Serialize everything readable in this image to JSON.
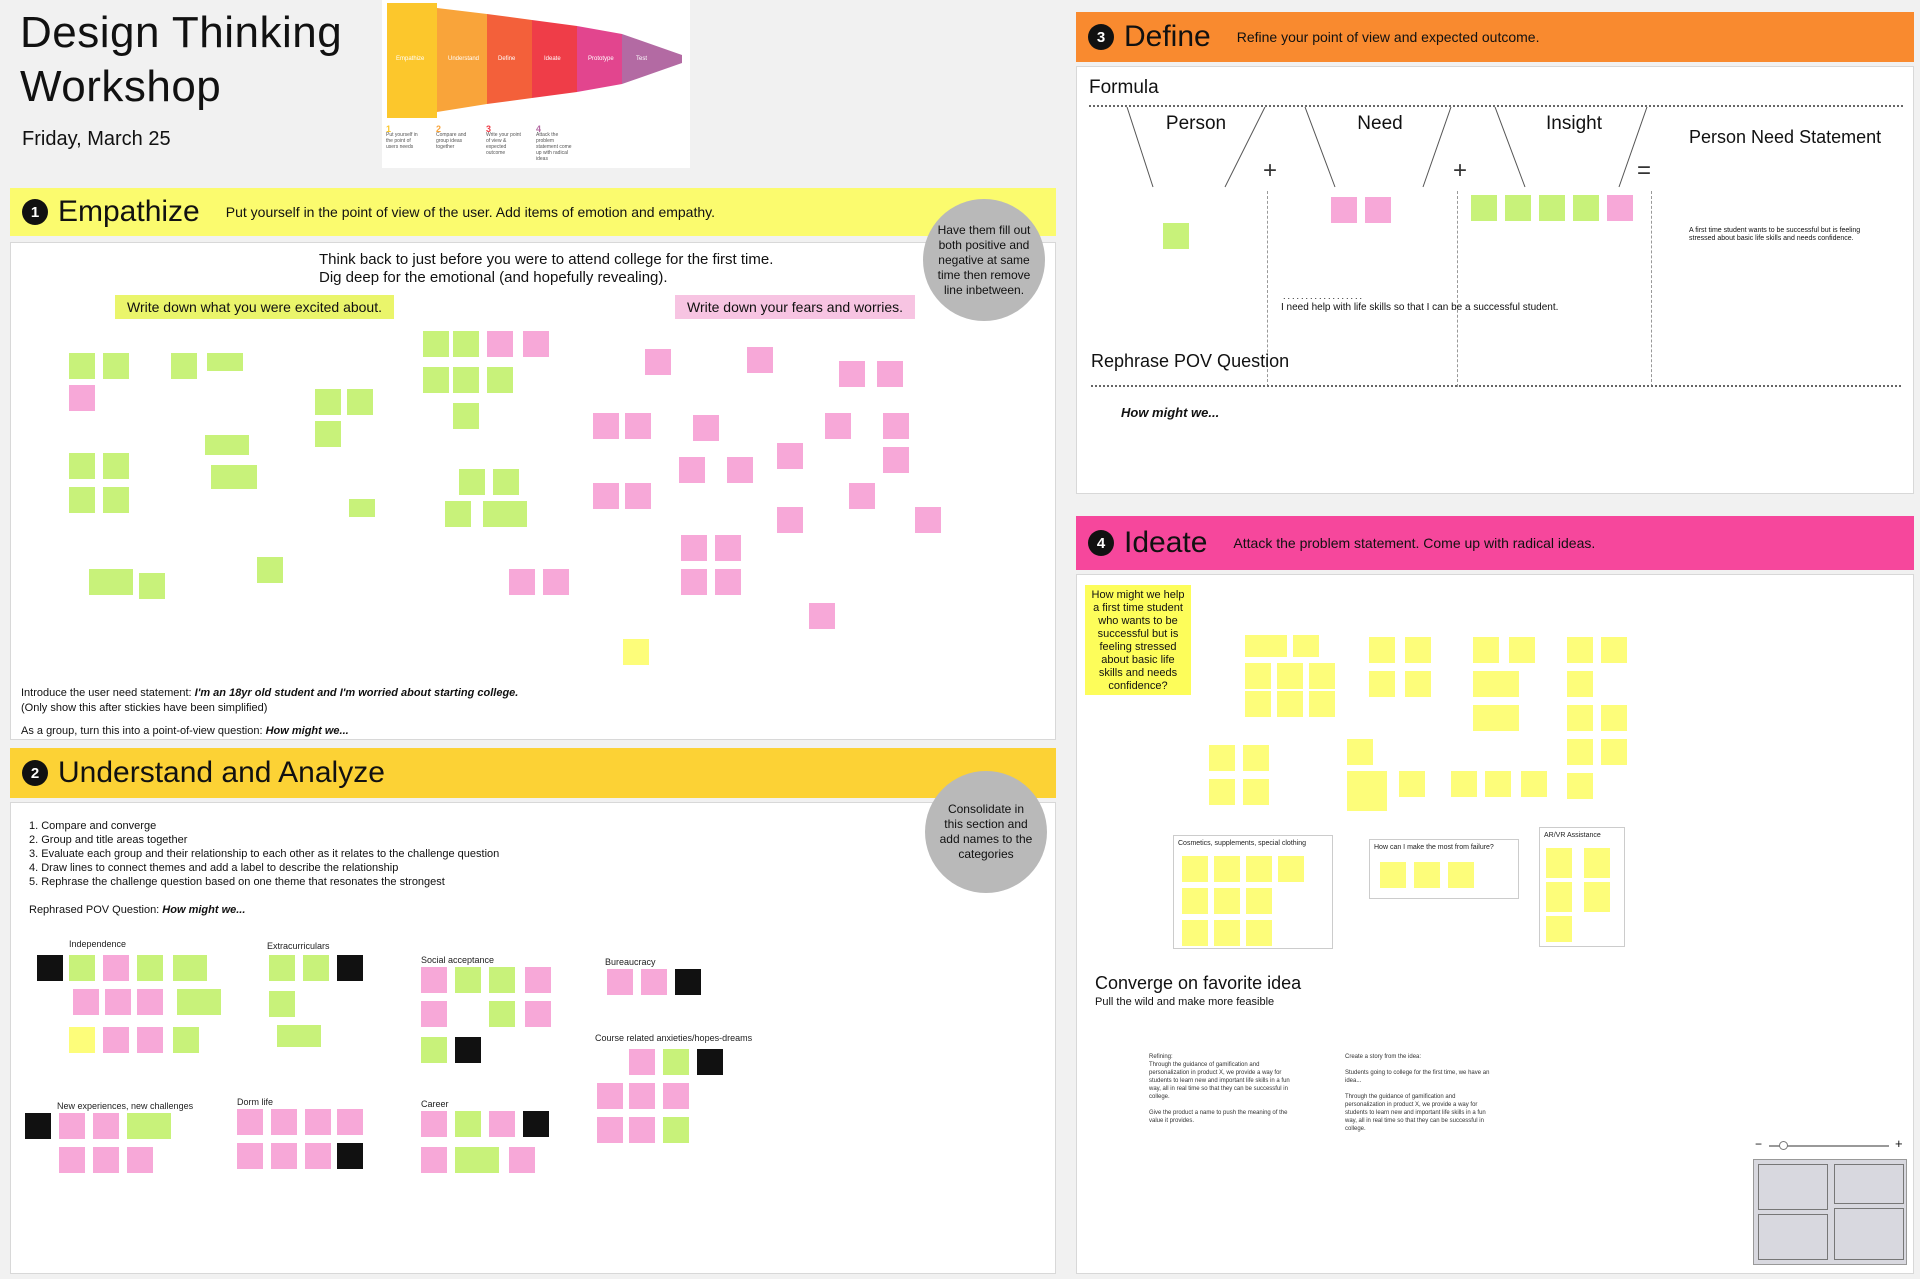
{
  "board": {
    "title_line1": "Design Thinking",
    "title_line2": "Workshop",
    "date": "Friday, March 25"
  },
  "funnel": {
    "stages": [
      "Empathize",
      "Understand",
      "Define",
      "Ideate",
      "Prototype",
      "Test"
    ],
    "steps": [
      {
        "num": "1",
        "text": "Put yourself in the point of users needs"
      },
      {
        "num": "2",
        "text": "Compare and group ideas together"
      },
      {
        "num": "3",
        "text": "Write your point of view & expected outcome"
      },
      {
        "num": "4",
        "text": "Attack the problem statement come up with radical ideas"
      }
    ]
  },
  "empathize": {
    "num": "1",
    "title": "Empathize",
    "subtitle": "Put yourself in the point of view of the user. Add items of emotion and empathy.",
    "hint": "Have them fill out both positive and negative at same time then remove line inbetween.",
    "intro_line1": "Think back to just before you were to attend college for the first time.",
    "intro_line2": "Dig deep for the emotional (and hopefully revealing).",
    "excited_label": "Write down what you were excited about.",
    "fears_label": "Write down your fears and worries.",
    "need_prefix": "Introduce the user need statement: ",
    "need_statement": "I'm an 18yr old student and I'm worried about starting college.",
    "need_note": "(Only show this after stickies have been simplified)",
    "pov_prefix": "As a group, turn this into a point-of-view question: ",
    "pov_question": "How might we..."
  },
  "understand": {
    "num": "2",
    "title": "Understand and Analyze",
    "hint": "Consolidate in this section and add names to the categories",
    "steps": [
      "1. Compare and converge",
      "2. Group and title areas together",
      "3. Evaluate each group and their relationship to each other as it relates to the challenge question",
      "4. Draw lines to connect themes and add a label to describe the relationship",
      "5. Rephrase the challenge question based on one theme that resonates the strongest"
    ],
    "rephrased_prefix": "Rephrased POV Question: ",
    "rephrased_question": "How might we...",
    "groups": [
      "Independence",
      "Extracurriculars",
      "Social acceptance",
      "Bureaucracy",
      "Course related anxieties/hopes-dreams",
      "New experiences, new challenges",
      "Dorm life",
      "Career"
    ]
  },
  "define": {
    "num": "3",
    "title": "Define",
    "subtitle": "Refine your point of view and expected outcome.",
    "formula_label": "Formula",
    "person": "Person",
    "need": "Need",
    "insight": "Insight",
    "statement_label": "Person Need Statement",
    "plus": "+",
    "equals": "=",
    "need_text": "I need help with life skills so that I can be a successful student.",
    "statement_text": "A first time student wants to be successful but is feeling stressed about basic life skills and needs confidence.",
    "rephrase_label": "Rephrase POV Question",
    "rephrase_question": "How might we..."
  },
  "ideate": {
    "num": "4",
    "title": "Ideate",
    "subtitle": "Attack the problem statement. Come up with radical ideas.",
    "question": "How might we help a first time student who wants to be successful but is feeling stressed about basic life skills and needs confidence?",
    "group1": "Cosmetics, supplements, special clothing",
    "group2": "How can I make the most from failure?",
    "group3": "AR/VR Assistance",
    "converge_title": "Converge on favorite idea",
    "converge_sub": "Pull the wild and make more feasible",
    "refining_label": "Refining:",
    "refining_text": "Through the guidance of gamification and personalization in product X, we provide a way for students to learn new and important life skills in a fun way, all in real time so that they can be successful in college.",
    "name_text": "Give the product a name to push the meaning of the value it provides.",
    "story_label": "Create a story from the idea:",
    "story_text1": "Students going to college for the first time, we have an idea...",
    "story_text2": "Through the guidance of gamification and personalization in product X, we provide a way for students to learn new and important life skills in a fun way, all in real time so that they can be successful in college."
  },
  "zoom": {
    "minus": "−",
    "plus": "+"
  },
  "colors": {
    "empathize": "#fbfb6e",
    "understand": "#fcd235",
    "define": "#f98a2f",
    "ideate": "#f6479c",
    "sticky_pink": "#f7a8d8",
    "sticky_green": "#c8f27a",
    "sticky_yellow": "#fdfd7a"
  }
}
